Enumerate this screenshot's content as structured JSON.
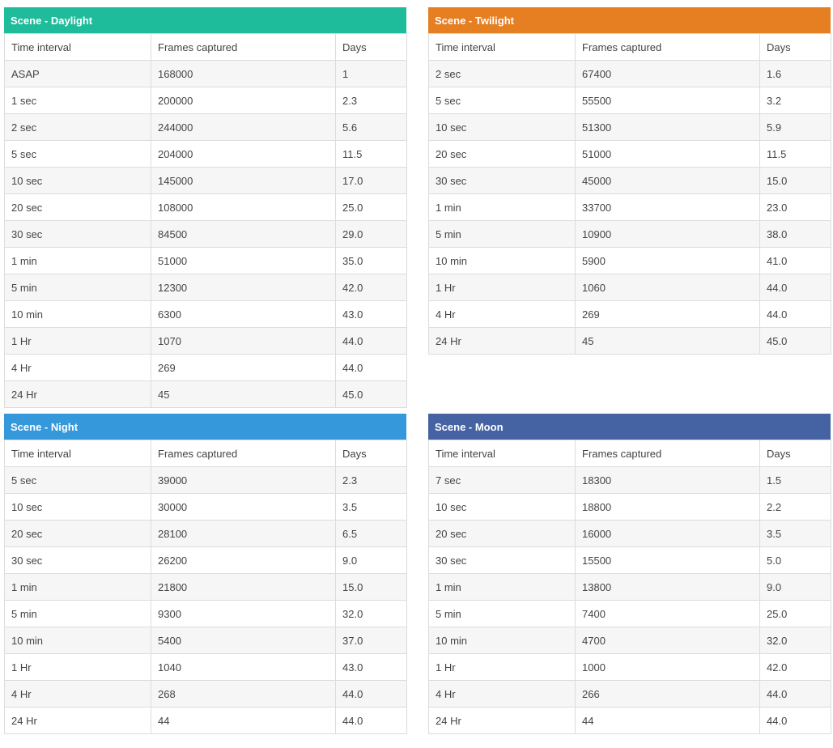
{
  "columns": [
    "Time interval",
    "Frames captured",
    "Days"
  ],
  "tables": [
    {
      "title": "Scene - Daylight",
      "color": "#1fbc9c",
      "rows": [
        [
          "ASAP",
          "168000",
          "1"
        ],
        [
          "1 sec",
          "200000",
          "2.3"
        ],
        [
          "2 sec",
          "244000",
          "5.6"
        ],
        [
          "5 sec",
          "204000",
          "11.5"
        ],
        [
          "10 sec",
          "145000",
          "17.0"
        ],
        [
          "20 sec",
          "108000",
          "25.0"
        ],
        [
          "30 sec",
          "84500",
          "29.0"
        ],
        [
          "1 min",
          "51000",
          "35.0"
        ],
        [
          "5 min",
          "12300",
          "42.0"
        ],
        [
          "10 min",
          "6300",
          "43.0"
        ],
        [
          "1 Hr",
          "1070",
          "44.0"
        ],
        [
          "4 Hr",
          "269",
          "44.0"
        ],
        [
          "24 Hr",
          "45",
          "45.0"
        ]
      ]
    },
    {
      "title": "Scene - Twilight",
      "color": "#e67e22",
      "rows": [
        [
          "2 sec",
          "67400",
          "1.6"
        ],
        [
          "5 sec",
          "55500",
          "3.2"
        ],
        [
          "10 sec",
          "51300",
          "5.9"
        ],
        [
          "20 sec",
          "51000",
          "11.5"
        ],
        [
          "30 sec",
          "45000",
          "15.0"
        ],
        [
          "1 min",
          "33700",
          "23.0"
        ],
        [
          "5 min",
          "10900",
          "38.0"
        ],
        [
          "10 min",
          "5900",
          "41.0"
        ],
        [
          "1 Hr",
          "1060",
          "44.0"
        ],
        [
          "4 Hr",
          "269",
          "44.0"
        ],
        [
          "24 Hr",
          "45",
          "45.0"
        ]
      ]
    },
    {
      "title": "Scene - Night",
      "color": "#3498db",
      "rows": [
        [
          "5 sec",
          "39000",
          "2.3"
        ],
        [
          "10 sec",
          "30000",
          "3.5"
        ],
        [
          "20 sec",
          "28100",
          "6.5"
        ],
        [
          "30 sec",
          "26200",
          "9.0"
        ],
        [
          "1 min",
          "21800",
          "15.0"
        ],
        [
          "5 min",
          "9300",
          "32.0"
        ],
        [
          "10 min",
          "5400",
          "37.0"
        ],
        [
          "1 Hr",
          "1040",
          "43.0"
        ],
        [
          "4 Hr",
          "268",
          "44.0"
        ],
        [
          "24 Hr",
          "44",
          "44.0"
        ]
      ]
    },
    {
      "title": "Scene - Moon",
      "color": "#4563a3",
      "rows": [
        [
          "7 sec",
          "18300",
          "1.5"
        ],
        [
          "10 sec",
          "18800",
          "2.2"
        ],
        [
          "20 sec",
          "16000",
          "3.5"
        ],
        [
          "30 sec",
          "15500",
          "5.0"
        ],
        [
          "1 min",
          "13800",
          "9.0"
        ],
        [
          "5 min",
          "7400",
          "25.0"
        ],
        [
          "10 min",
          "4700",
          "32.0"
        ],
        [
          "1 Hr",
          "1000",
          "42.0"
        ],
        [
          "4 Hr",
          "266",
          "44.0"
        ],
        [
          "24 Hr",
          "44",
          "44.0"
        ]
      ]
    }
  ]
}
